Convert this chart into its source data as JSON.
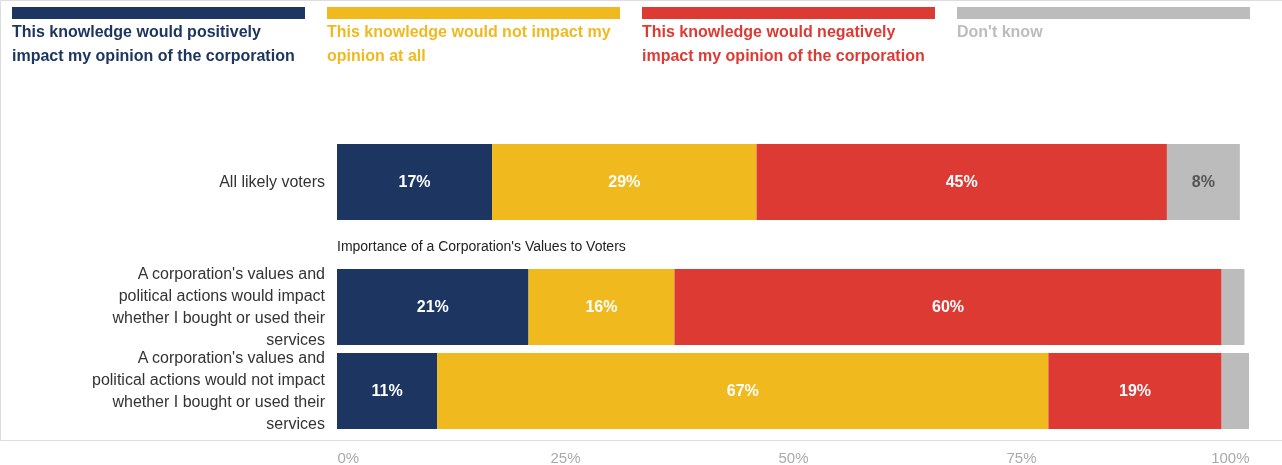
{
  "chart_data": {
    "type": "bar",
    "orientation": "horizontal",
    "stacked": true,
    "categories": [
      "All likely voters",
      "A corporation's values and political actions would impact whether I bought or used their services",
      "A corporation's values and political actions would not impact whether I bought or used their services"
    ],
    "series": [
      {
        "name": "This knowledge would positively impact my opinion of the corporation",
        "color": "#1c3661",
        "values": [
          17,
          21,
          11
        ],
        "value_labels": [
          "17%",
          "21%",
          "11%"
        ]
      },
      {
        "name": "This knowledge would not impact my opinion at all",
        "color": "#f0b91e",
        "values": [
          29,
          16,
          67
        ],
        "value_labels": [
          "29%",
          "16%",
          "67%"
        ]
      },
      {
        "name": "This knowledge would negatively impact my opinion of the corporation",
        "color": "#dd3a34",
        "values": [
          45,
          60,
          19
        ],
        "value_labels": [
          "45%",
          "60%",
          "19%"
        ]
      },
      {
        "name": "Don't know",
        "color": "#bcbcbc",
        "values": [
          8,
          2.5,
          3
        ],
        "value_labels": [
          "8%",
          null,
          null
        ]
      }
    ],
    "xlim": [
      0,
      100
    ],
    "xticks": [
      {
        "value": 0,
        "label": "0%"
      },
      {
        "value": 25,
        "label": "25%"
      },
      {
        "value": 50,
        "label": "50%"
      },
      {
        "value": 75,
        "label": "75%"
      },
      {
        "value": 100,
        "label": "100%"
      }
    ],
    "annotations": [
      "Importance of a Corporation's Values to Voters"
    ],
    "legend": "top",
    "grid": false
  }
}
